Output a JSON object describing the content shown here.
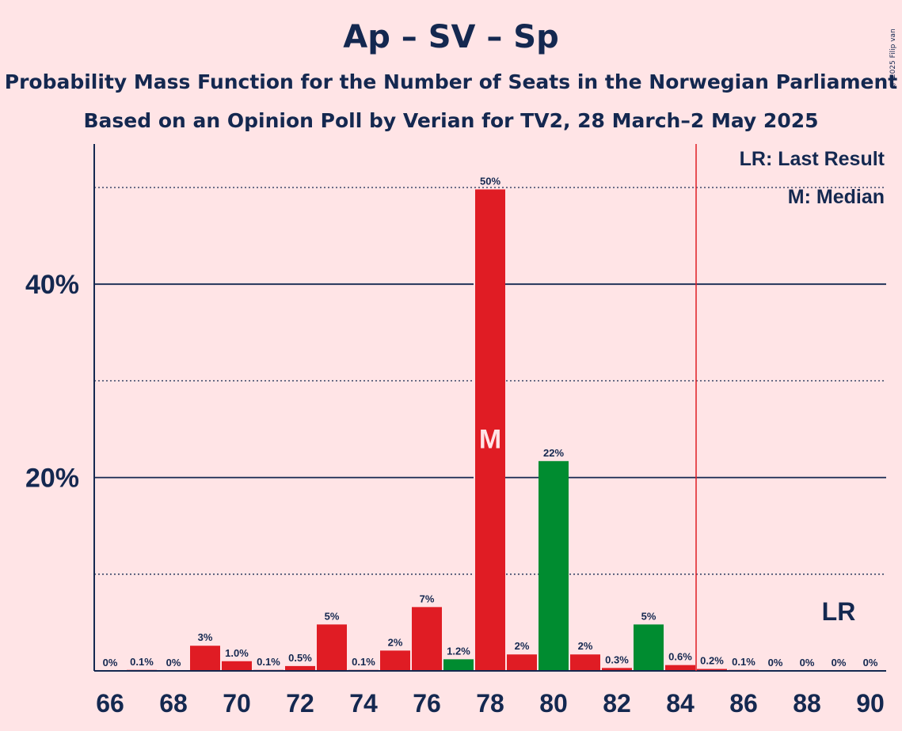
{
  "header": {
    "title": "Ap – SV – Sp",
    "subtitle": "Probability Mass Function for the Number of Seats in the Norwegian Parliament",
    "subtitle2": "Based on an Opinion Poll by Verian for TV2, 28 March–2 May 2025",
    "copyright": "© 2025 Filip van Laenen"
  },
  "colors": {
    "background": "#FFE4E6",
    "text": "#142850",
    "red": "#E01C24",
    "green": "#008C30",
    "last_result_line": "#E01C24"
  },
  "chart_data": {
    "type": "bar",
    "x": [
      66,
      67,
      68,
      69,
      70,
      71,
      72,
      73,
      74,
      75,
      76,
      77,
      78,
      79,
      80,
      81,
      82,
      83,
      84,
      85,
      86,
      87,
      88,
      89,
      90
    ],
    "values": [
      0,
      0.1,
      0,
      2.6,
      1.0,
      0.1,
      0.5,
      4.8,
      0.1,
      2.1,
      6.6,
      1.2,
      49.8,
      1.7,
      21.7,
      1.7,
      0.3,
      4.8,
      0.6,
      0.2,
      0.1,
      0,
      0,
      0,
      0
    ],
    "data_labels": [
      "0%",
      "0.1%",
      "0%",
      "3%",
      "1.0%",
      "0.1%",
      "0.5%",
      "5%",
      "0.1%",
      "2%",
      "7%",
      "1.2%",
      "50%",
      "2%",
      "22%",
      "2%",
      "0.3%",
      "5%",
      "0.6%",
      "0.2%",
      "0.1%",
      "0%",
      "0%",
      "0%",
      "0%"
    ],
    "bar_colors": [
      "red",
      "red",
      "red",
      "red",
      "red",
      "red",
      "red",
      "red",
      "red",
      "red",
      "red",
      "green",
      "red",
      "red",
      "green",
      "red",
      "red",
      "green",
      "red",
      "red",
      "red",
      "red",
      "red",
      "red",
      "red"
    ],
    "x_ticks": [
      "66",
      "68",
      "70",
      "72",
      "74",
      "76",
      "78",
      "80",
      "82",
      "84",
      "86",
      "88",
      "90"
    ],
    "y_ticks": [
      "20%",
      "40%"
    ],
    "y_tick_values": [
      20,
      40
    ],
    "y_dotted_gridlines": [
      10,
      30,
      50
    ],
    "ylim": [
      0,
      54.5
    ],
    "median": {
      "seat": 78,
      "label": "M"
    },
    "last_result": {
      "seat": 89,
      "label": "LR",
      "threshold_after_seat": 84
    },
    "legend": [
      "LR: Last Result",
      "M: Median"
    ],
    "legend_position": "top-right",
    "xlabel": "",
    "ylabel": ""
  }
}
